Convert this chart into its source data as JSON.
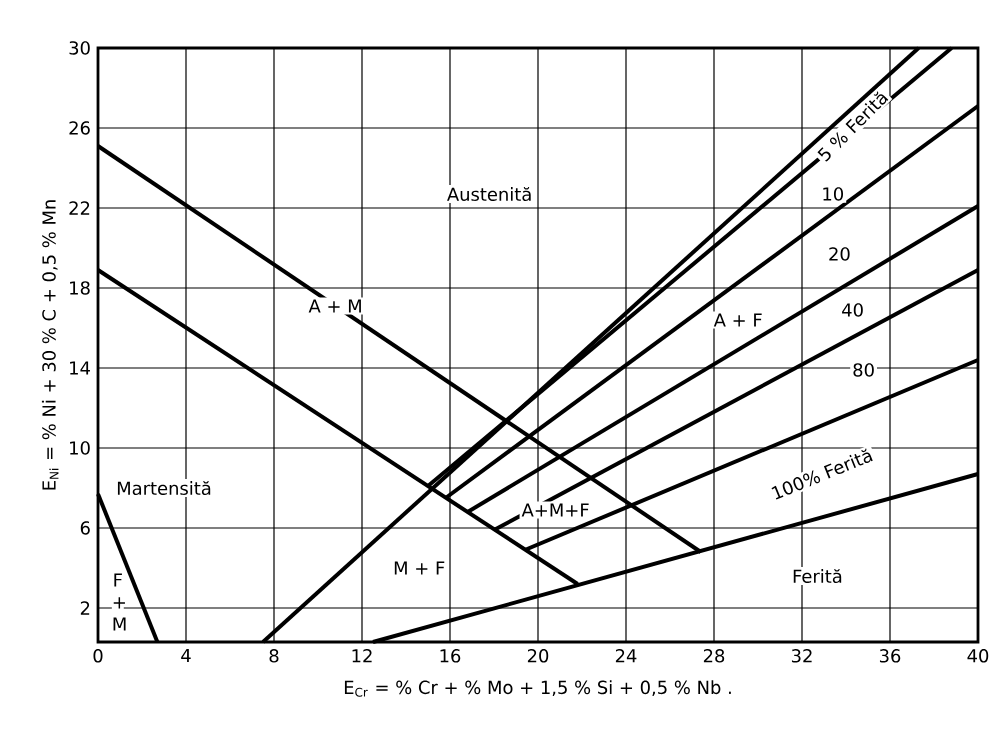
{
  "chart_data": {
    "type": "line",
    "xlabel": "E$_{Cr}$ = % Cr + % Mo + 1,5 % Si + 0,5 % Nb .",
    "ylabel": "E$_{Ni}$ = % Ni + 30 % C + 0,5 % Mn",
    "xlim": [
      0,
      40
    ],
    "ylim": [
      0.3,
      30
    ],
    "xticks": [
      0,
      4,
      8,
      12,
      16,
      20,
      24,
      28,
      32,
      36,
      40
    ],
    "yticks": [
      2,
      6,
      10,
      14,
      18,
      22,
      26,
      30
    ],
    "grid": true,
    "marker": "none",
    "line_style": "solid",
    "series": [
      {
        "color": "#000000",
        "x": [
          0,
          27.4
        ],
        "values": [
          25.1,
          4.8
        ]
      },
      {
        "color": "#000000",
        "x": [
          0,
          21.8
        ],
        "values": [
          18.9,
          3.2
        ]
      },
      {
        "color": "#000000",
        "x": [
          0,
          2.7
        ],
        "values": [
          7.7,
          0.3
        ]
      },
      {
        "color": "#000000",
        "x": [
          7.5,
          37.3
        ],
        "values": [
          0.3,
          30
        ]
      },
      {
        "color": "#000000",
        "x": [
          15.0,
          38.8
        ],
        "values": [
          8.1,
          30
        ]
      },
      {
        "color": "#000000",
        "x": [
          15.8,
          40
        ],
        "values": [
          7.5,
          27.1
        ]
      },
      {
        "color": "#000000",
        "x": [
          16.8,
          40
        ],
        "values": [
          6.8,
          22.1
        ]
      },
      {
        "color": "#000000",
        "x": [
          18.0,
          40
        ],
        "values": [
          5.9,
          18.9
        ]
      },
      {
        "color": "#000000",
        "x": [
          19.4,
          40
        ],
        "values": [
          4.9,
          14.4
        ]
      },
      {
        "color": "#000000",
        "x": [
          12.5,
          40
        ],
        "values": [
          0.3,
          8.7
        ]
      }
    ],
    "annotations": [
      "Austenită",
      "A + M",
      "Martensită",
      "F + M",
      "M + F",
      "A+M+F",
      "A + F",
      "5 % Ferită",
      "10",
      "20",
      "40",
      "80",
      "100% Ferită",
      "Ferită"
    ]
  }
}
